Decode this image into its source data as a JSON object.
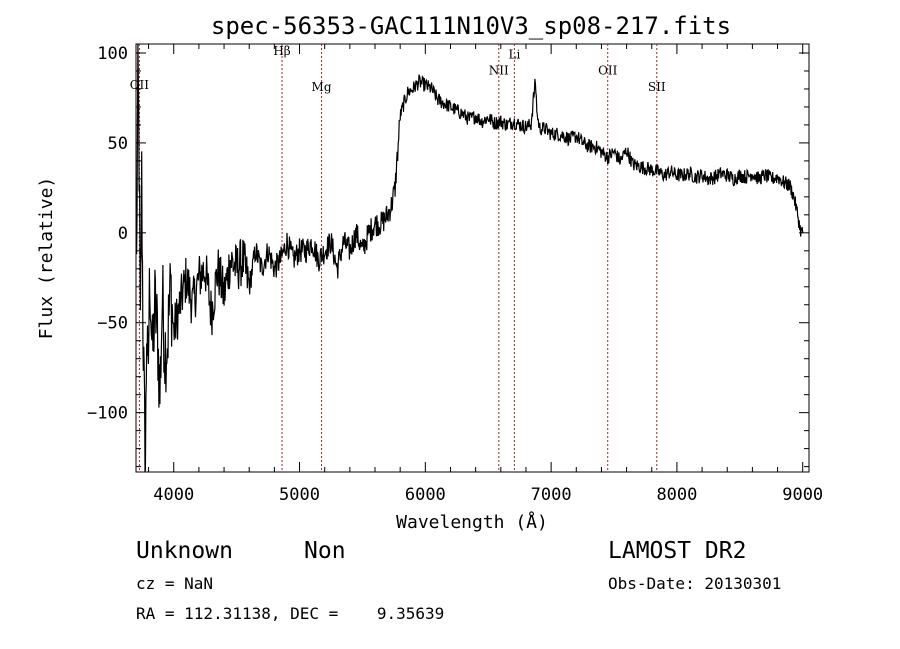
{
  "chart_data": {
    "type": "line",
    "title": "spec-56353-GAC111N10V3_sp08-217.fits",
    "xlabel": "Wavelength (Å)",
    "ylabel": "Flux (relative)",
    "xlim": [
      3700,
      9050
    ],
    "ylim": [
      -133,
      105
    ],
    "xticks": [
      4000,
      5000,
      6000,
      7000,
      8000,
      9000
    ],
    "yticks": [
      -100,
      -50,
      0,
      50,
      100
    ],
    "grid": false,
    "line_color": "#000000",
    "spectral_line_color": "#aa2222",
    "spectral_lines": [
      {
        "name": "OII",
        "wavelength": 3727,
        "label_flux": 80
      },
      {
        "name": "Hβ",
        "wavelength": 4861,
        "label_flux": 99
      },
      {
        "name": "Mg",
        "wavelength": 5175,
        "label_flux": 79
      },
      {
        "name": "NII",
        "wavelength": 6584,
        "label_flux": 88
      },
      {
        "name": "Li",
        "wavelength": 6708,
        "label_flux": 97
      },
      {
        "name": "OII",
        "wavelength": 7450,
        "label_flux": 88
      },
      {
        "name": "SII",
        "wavelength": 7840,
        "label_flux": 79
      }
    ],
    "series": [
      {
        "x": [
          3705,
          3715,
          3725,
          3735,
          3745,
          3755,
          3765,
          3775,
          3785,
          3795,
          3810,
          3830,
          3850,
          3870,
          3890,
          3910,
          3930,
          3950,
          3975,
          4000,
          4050,
          4100,
          4150,
          4200,
          4250,
          4300,
          4350,
          4400,
          4450,
          4500,
          4550,
          4600,
          4650,
          4700,
          4750,
          4800,
          4850,
          4900,
          4950,
          5000,
          5050,
          5100,
          5150,
          5200,
          5250,
          5300,
          5350,
          5400,
          5450,
          5500,
          5550,
          5600,
          5650,
          5700,
          5730,
          5760,
          5780,
          5800,
          5830,
          5860,
          5900,
          5950,
          6000,
          6050,
          6100,
          6150,
          6200,
          6250,
          6300,
          6350,
          6400,
          6450,
          6500,
          6550,
          6600,
          6650,
          6700,
          6750,
          6800,
          6840,
          6860,
          6875,
          6890,
          6910,
          6950,
          7000,
          7050,
          7100,
          7150,
          7200,
          7250,
          7300,
          7350,
          7400,
          7450,
          7500,
          7550,
          7600,
          7650,
          7700,
          7750,
          7800,
          7850,
          7900,
          7950,
          8000,
          8050,
          8100,
          8150,
          8200,
          8250,
          8300,
          8350,
          8400,
          8450,
          8500,
          8550,
          8600,
          8650,
          8700,
          8750,
          8800,
          8850,
          8900,
          8930,
          8960,
          8980,
          9000
        ],
        "y": [
          -20,
          95,
          40,
          -60,
          30,
          -45,
          -95,
          -130,
          -50,
          -85,
          -20,
          -70,
          -40,
          -55,
          -90,
          -35,
          -65,
          -60,
          -30,
          -55,
          -40,
          -25,
          -40,
          -25,
          -20,
          -45,
          -20,
          -35,
          -15,
          -20,
          -15,
          -30,
          -10,
          -20,
          -10,
          -20,
          -15,
          -5,
          -15,
          -10,
          -10,
          -5,
          -15,
          -10,
          -5,
          -20,
          -5,
          -10,
          0,
          -10,
          0,
          5,
          5,
          10,
          15,
          25,
          45,
          65,
          72,
          78,
          80,
          84,
          82,
          80,
          74,
          72,
          70,
          68,
          66,
          63,
          65,
          62,
          64,
          61,
          62,
          60,
          62,
          60,
          59,
          60,
          75,
          84,
          65,
          58,
          58,
          55,
          55,
          54,
          52,
          54,
          50,
          48,
          48,
          45,
          42,
          45,
          40,
          46,
          38,
          37,
          36,
          35,
          34,
          32,
          34,
          32,
          32,
          33,
          31,
          32,
          30,
          31,
          33,
          32,
          30,
          32,
          31,
          33,
          30,
          32,
          30,
          31,
          28,
          26,
          20,
          10,
          2,
          0
        ]
      }
    ]
  },
  "info": {
    "object_class": "Unknown",
    "subclass": "Non",
    "survey": "LAMOST DR2",
    "cz": "cz = NaN",
    "obs_date": "Obs-Date: 20130301",
    "radec": "RA = 112.31138, DEC =    9.35639"
  }
}
